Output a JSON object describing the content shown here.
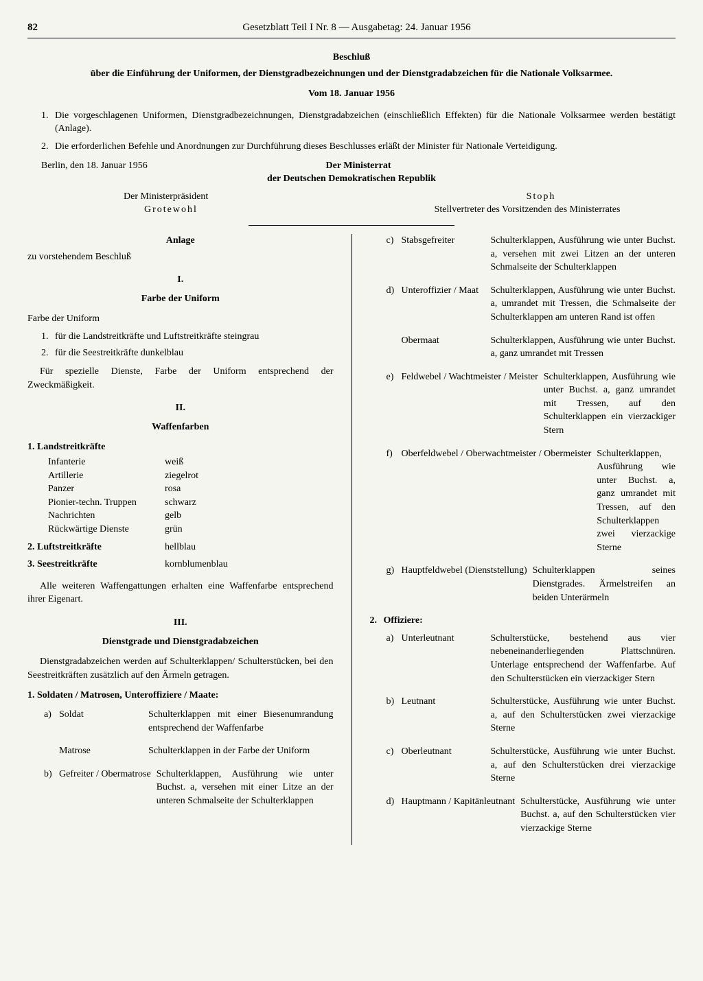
{
  "header": {
    "pageNumber": "82",
    "title": "Gesetzblatt Teil I Nr. 8 — Ausgabetag: 24. Januar 1956"
  },
  "beschluss": {
    "title": "Beschluß",
    "subtitle": "über die Einführung der Uniformen, der Dienstgradbezeichnungen und der Dienstgradabzeichen für die Nationale Volksarmee.",
    "date": "Vom 18. Januar 1956",
    "items": [
      {
        "num": "1.",
        "text": "Die vorgeschlagenen Uniformen, Dienstgradbezeichnungen, Dienstgradabzeichen (einschließlich Effekten) für die Nationale Volksarmee werden bestätigt (Anlage)."
      },
      {
        "num": "2.",
        "text": "Die erforderlichen Befehle und Anordnungen zur Durchführung dieses Beschlusses erläßt der Minister für Nationale Verteidigung."
      }
    ],
    "location": "Berlin, den 18. Januar 1956",
    "ministerrat1": "Der Ministerrat",
    "ministerrat2": "der Deutschen Demokratischen Republik",
    "president_title": "Der Ministerpräsident",
    "president_name": "Grotewohl",
    "deputy_name": "Stoph",
    "deputy_title": "Stellvertreter des Vorsitzenden des Ministerrates"
  },
  "anlage": {
    "title": "Anlage",
    "subtitle": "zu vorstehendem Beschluß"
  },
  "section1": {
    "num": "I.",
    "heading": "Farbe der Uniform",
    "intro": "Farbe der Uniform",
    "items": [
      {
        "num": "1.",
        "text": "für die Landstreitkräfte und Luftstreitkräfte steingrau"
      },
      {
        "num": "2.",
        "text": "für die Seestreitkräfte dunkelblau"
      }
    ],
    "note": "Für spezielle Dienste, Farbe der Uniform entsprechend der Zweckmäßigkeit."
  },
  "section2": {
    "num": "II.",
    "heading": "Waffenfarben",
    "land_title": "1. Landstreitkräfte",
    "land_items": [
      {
        "name": "Infanterie",
        "color": "weiß"
      },
      {
        "name": "Artillerie",
        "color": "ziegelrot"
      },
      {
        "name": "Panzer",
        "color": "rosa"
      },
      {
        "name": "Pionier-techn. Truppen",
        "color": "schwarz"
      },
      {
        "name": "Nachrichten",
        "color": "gelb"
      },
      {
        "name": "Rückwärtige Dienste",
        "color": "grün"
      }
    ],
    "luft": {
      "title": "2. Luftstreitkräfte",
      "color": "hellblau"
    },
    "see": {
      "title": "3. Seestreitkräfte",
      "color": "kornblumenblau"
    },
    "note": "Alle weiteren Waffengattungen erhalten eine Waffenfarbe entsprechend ihrer Eigenart."
  },
  "section3": {
    "num": "III.",
    "heading": "Dienstgrade und Dienstgradabzeichen",
    "intro": "Dienstgradabzeichen werden auf Schulterklappen/ Schulterstücken, bei den Seestreitkräften zusätzlich auf den Ärmeln getragen.",
    "group1_title": "1. Soldaten / Matrosen, Unteroffiziere / Maate:",
    "group1_items": [
      {
        "letter": "a)",
        "label": "Soldat",
        "desc": "Schulterklappen mit einer Biesenumrandung entsprechend der Waffenfarbe"
      },
      {
        "letter": "",
        "label": "Matrose",
        "desc": "Schulterklappen in der Farbe der Uniform"
      },
      {
        "letter": "b)",
        "label": "Gefreiter / Obermatrose",
        "desc": "Schulterklappen, Ausführung wie unter Buchst. a, versehen mit einer Litze an der unteren Schmalseite der Schulterklappen"
      },
      {
        "letter": "c)",
        "label": "Stabsgefreiter",
        "desc": "Schulterklappen, Ausführung wie unter Buchst. a, versehen mit zwei Litzen an der unteren Schmalseite der Schulterklappen"
      },
      {
        "letter": "d)",
        "label": "Unteroffizier / Maat",
        "desc": "Schulterklappen, Ausführung wie unter Buchst. a, umrandet mit Tressen, die Schmalseite der Schulterklappen am unteren Rand ist offen"
      },
      {
        "letter": "",
        "label": "Obermaat",
        "desc": "Schulterklappen, Ausführung wie unter Buchst. a, ganz umrandet mit Tressen"
      },
      {
        "letter": "e)",
        "label": "Feldwebel / Wachtmeister / Meister",
        "desc": "Schulterklappen, Ausführung wie unter Buchst. a, ganz umrandet mit Tressen, auf den Schulterklappen ein vierzackiger Stern"
      },
      {
        "letter": "f)",
        "label": "Oberfeldwebel / Oberwachtmeister / Obermeister",
        "desc": "Schulterklappen, Ausführung wie unter Buchst. a, ganz umrandet mit Tressen, auf den Schulterklappen zwei vierzackige Sterne"
      },
      {
        "letter": "g)",
        "label": "Hauptfeldwebel (Dienststellung)",
        "desc": "Schulterklappen seines Dienstgrades. Ärmelstreifen an beiden Unterärmeln"
      }
    ],
    "group2_title": "2. Offiziere:",
    "group2_items": [
      {
        "letter": "a)",
        "label": "Unterleutnant",
        "desc": "Schulterstücke, bestehend aus vier nebeneinanderliegenden Plattschnüren. Unterlage entsprechend der Waffenfarbe. Auf den Schulterstücken ein vierzackiger Stern"
      },
      {
        "letter": "b)",
        "label": "Leutnant",
        "desc": "Schulterstücke, Ausführung wie unter Buchst. a, auf den Schulterstücken zwei vierzackige Sterne"
      },
      {
        "letter": "c)",
        "label": "Oberleutnant",
        "desc": "Schulterstücke, Ausführung wie unter Buchst. a, auf den Schulterstücken drei vierzackige Sterne"
      },
      {
        "letter": "d)",
        "label": "Hauptmann / Kapitänleutnant",
        "desc": "Schulterstücke, Ausführung wie unter Buchst. a, auf den Schulterstücken vier vierzackige Sterne"
      }
    ]
  }
}
